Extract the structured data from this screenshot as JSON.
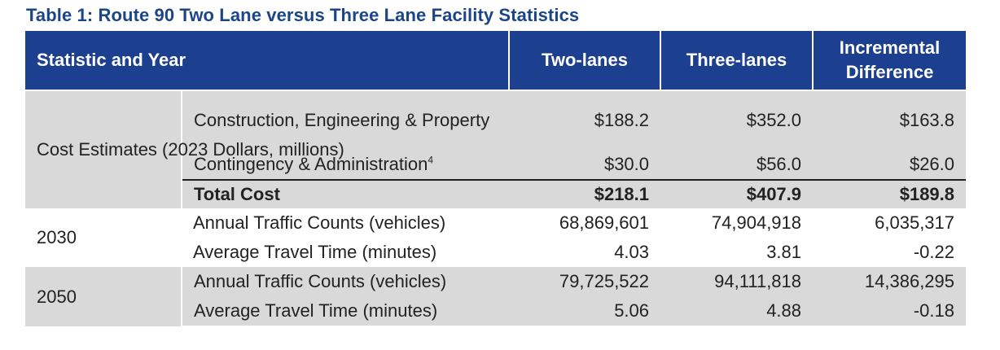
{
  "caption": "Table 1: Route 90 Two Lane versus Three Lane Facility Statistics",
  "header": {
    "col1": "Statistic and Year",
    "col2": "Two-lanes",
    "col3": "Three-lanes",
    "col4_line1": "Incremental",
    "col4_line2": "Difference"
  },
  "cost": {
    "group": "Cost Estimates (2023 Dollars, millions)",
    "rows": [
      {
        "label": "Construction, Engineering & Property",
        "two": "$188.2",
        "three": "$352.0",
        "diff": "$163.8"
      },
      {
        "label": "Contingency & Administration",
        "footnote": "4",
        "two": "$30.0",
        "three": "$56.0",
        "diff": "$26.0"
      },
      {
        "label": "Total Cost",
        "two": "$218.1",
        "three": "$407.9",
        "diff": "$189.8"
      }
    ]
  },
  "y2030": {
    "group": "2030",
    "rows": [
      {
        "label": "Annual Traffic Counts (vehicles)",
        "two": "68,869,601",
        "three": "74,904,918",
        "diff": "6,035,317"
      },
      {
        "label": "Average Travel Time (minutes)",
        "two": "4.03",
        "three": "3.81",
        "diff": "-0.22"
      }
    ]
  },
  "y2050": {
    "group": "2050",
    "rows": [
      {
        "label": "Annual Traffic Counts (vehicles)",
        "two": "79,725,522",
        "three": "94,111,818",
        "diff": "14,386,295"
      },
      {
        "label": "Average Travel Time (minutes)",
        "two": "5.06",
        "three": "4.88",
        "diff": "-0.18"
      }
    ]
  },
  "colors": {
    "header_bg": "#1d3f8f",
    "caption": "#1c4587",
    "gray_band": "#d9d9d9"
  }
}
